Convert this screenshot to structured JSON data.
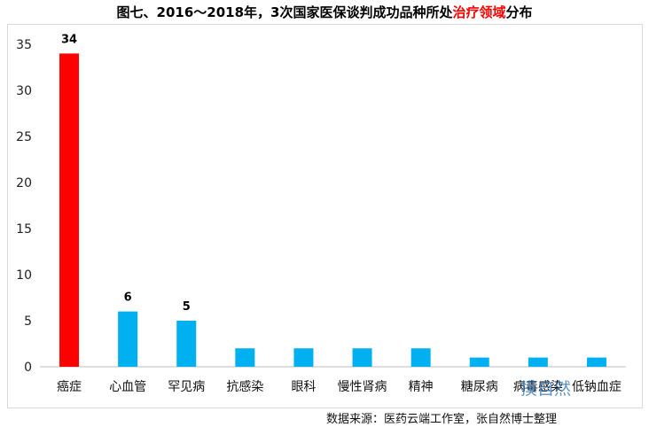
{
  "title": {
    "prefix": "图七、2016～2018年，3次国家医保谈判成功品种所处",
    "highlight": "治疗领域",
    "suffix": "分布"
  },
  "source": "数据来源：医药云端工作室，张自然博士整理",
  "watermark": "摸自然",
  "colors": {
    "highlight_bar": "#ff0000",
    "bar": "#00b0f0",
    "title_highlight": "#ff0000"
  },
  "chart_data": {
    "type": "bar",
    "categories": [
      "癌症",
      "心血管",
      "罕见病",
      "抗感染",
      "眼科",
      "慢性肾病",
      "精神",
      "糖尿病",
      "病毒感染",
      "低钠血症"
    ],
    "values": [
      34,
      6,
      5,
      2,
      2,
      2,
      2,
      1,
      1,
      1
    ],
    "data_labels": [
      "34",
      "6",
      "5",
      "",
      "",
      "",
      "",
      "",
      "",
      ""
    ],
    "highlight_index": 0,
    "yticks": [
      "0",
      "5",
      "10",
      "15",
      "20",
      "25",
      "30",
      "35"
    ],
    "ylim": [
      0,
      35
    ],
    "grid": false,
    "legend": false
  }
}
